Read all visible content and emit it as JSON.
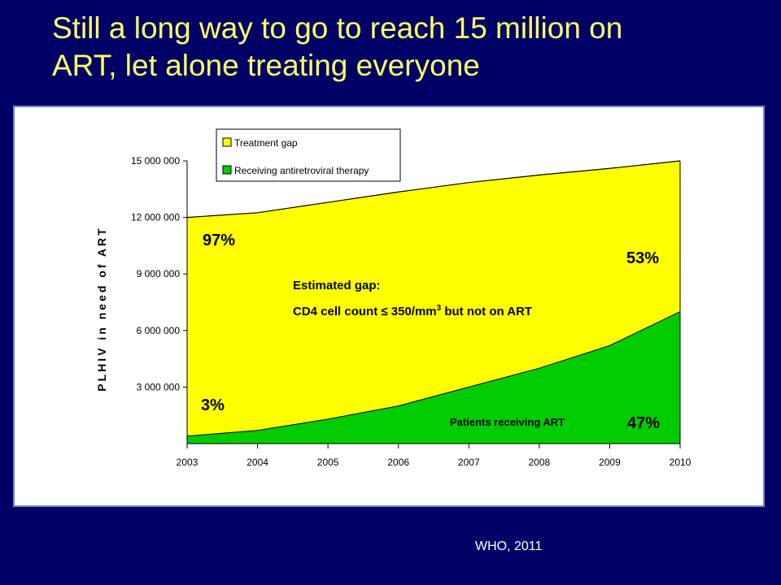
{
  "slide": {
    "title_line1": "Still a long way to go to reach 15 million on",
    "title_line2": "ART, let alone treating everyone",
    "source": "WHO, 2011"
  },
  "colors": {
    "background": "#000066",
    "title": "#ffff66",
    "gap_fill": "#ffff00",
    "art_fill": "#00cc00",
    "panel_border": "#6f86c6"
  },
  "chart_data": {
    "type": "area",
    "stacked": true,
    "ylabel": "PLHIV in need of ART",
    "ylim": [
      0,
      15000000
    ],
    "yticks": [
      3000000,
      6000000,
      9000000,
      12000000,
      15000000
    ],
    "ytick_labels": [
      "3 000 000",
      "6 000 000",
      "9 000 000",
      "12 000 000",
      "15 000 000"
    ],
    "x": [
      2003,
      2004,
      2005,
      2006,
      2007,
      2008,
      2009,
      2010
    ],
    "legend_position": "top-left",
    "series": [
      {
        "name": "Treatment gap",
        "color": "#ffff00",
        "values": [
          11600000,
          11550000,
          11500000,
          11350000,
          10850000,
          10250000,
          9400000,
          8000000
        ]
      },
      {
        "name": "Receiving antiretroviral therapy",
        "color": "#00cc00",
        "values": [
          400000,
          700000,
          1300000,
          2000000,
          3000000,
          4000000,
          5200000,
          7000000
        ]
      }
    ],
    "annotations": {
      "pct_gap_start": "97%",
      "pct_art_start": "3%",
      "pct_gap_end": "53%",
      "pct_art_end": "47%",
      "gap_label_line1": "Estimated gap:",
      "gap_label_line2": "CD4 cell count ≤ 350/mm",
      "gap_label_sup": "3",
      "gap_label_line2_end": " but not on ART",
      "art_label": "Patients receiving ART"
    }
  }
}
